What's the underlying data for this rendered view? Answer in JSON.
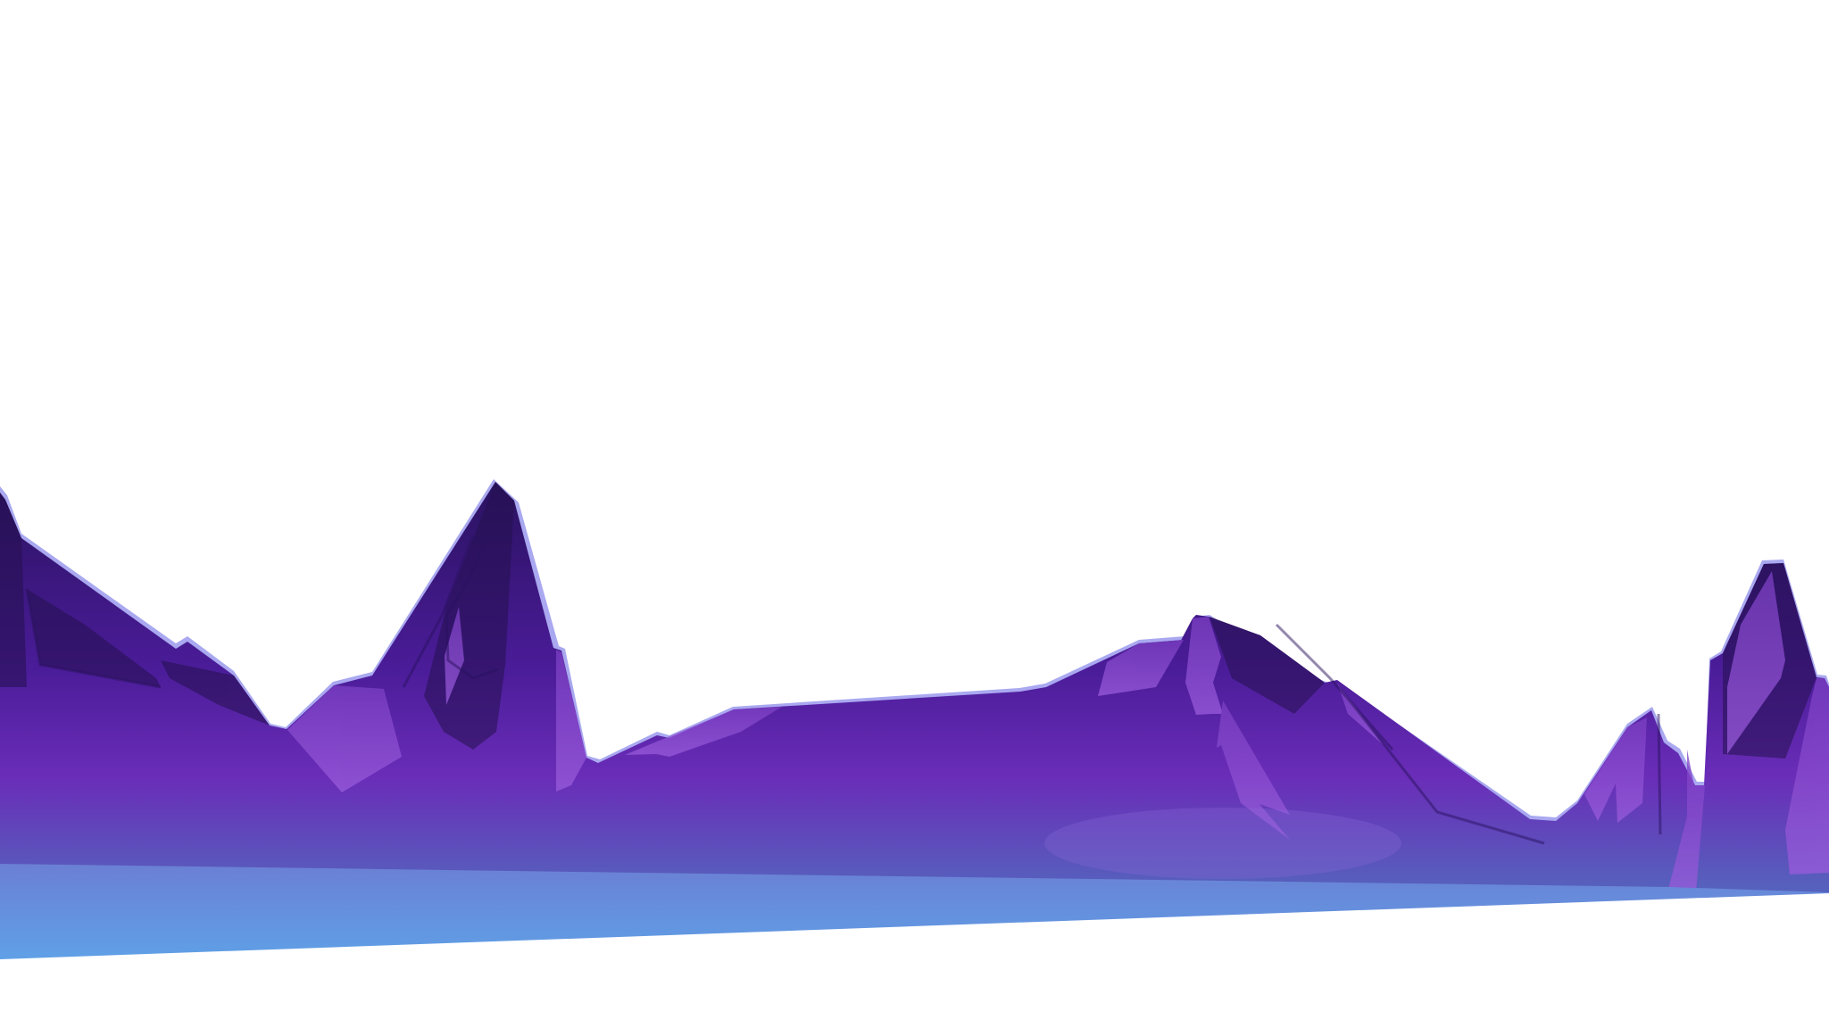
{
  "scene": {
    "subject": "mountain-range-illustration",
    "colors": {
      "background": "#ffffff",
      "mountain_top": "#2a1260",
      "mountain_mid": "#4a1c98",
      "mountain_low": "#6a2db8",
      "mountain_base": "#5563bd",
      "facet_light": "#8446c8",
      "facet_lighter": "#9a5cdc",
      "facet_dark": "#24104e",
      "rim_light": "#a9a8f0",
      "ground_top": "#6b7fd4",
      "ground_bottom": "#5fa0e6"
    }
  }
}
